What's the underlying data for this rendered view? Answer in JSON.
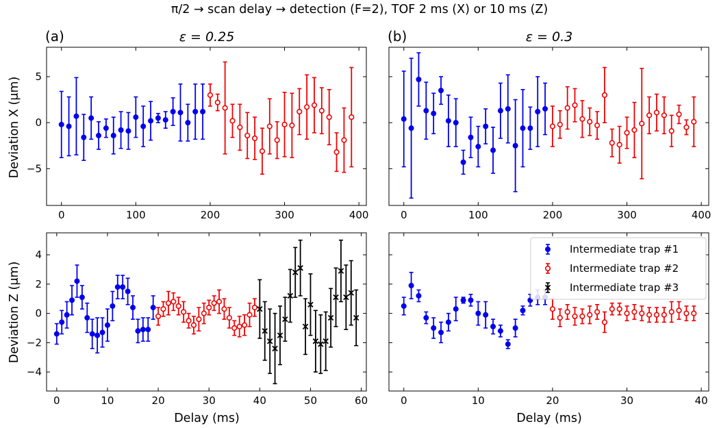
{
  "figure": {
    "suptitle": "π/2 → scan delay →  detection (F=2), TOF 2 ms (X) or 10 ms (Z)"
  },
  "chart_data": [
    {
      "id": "a-top",
      "type": "scatter",
      "panel_label": "(a)",
      "title": "ε = 0.25",
      "xlabel": "",
      "ylabel": "Deviation X (μm)",
      "xlim": [
        -20,
        410
      ],
      "ylim": [
        -9,
        8.2
      ],
      "xticks": [
        0,
        100,
        200,
        300,
        400
      ],
      "yticks": [
        -5,
        0,
        5
      ],
      "series": [
        {
          "name": "Intermediate trap #1",
          "color": "#0000ee",
          "marker": "filled-circle",
          "x": [
            0,
            10,
            20,
            30,
            40,
            50,
            60,
            70,
            80,
            90,
            100,
            110,
            120,
            130,
            140,
            150,
            160,
            170,
            180,
            190
          ],
          "y": [
            -0.2,
            -0.4,
            0.7,
            -1.6,
            0.5,
            -1.4,
            -0.6,
            -1.4,
            -0.8,
            -0.9,
            0.6,
            -0.4,
            0.2,
            0.5,
            0.3,
            1.2,
            1.1,
            0.0,
            1.2,
            1.2
          ],
          "err": [
            3.6,
            3.2,
            4.2,
            2.5,
            2.3,
            1.5,
            1.0,
            2.0,
            2.0,
            2.0,
            2.2,
            2.2,
            2.1,
            0.5,
            0.9,
            1.5,
            3.1,
            2.0,
            3.0,
            3.0
          ]
        },
        {
          "name": "Intermediate trap #2",
          "color": "#ee0000",
          "marker": "open-circle",
          "x": [
            200,
            210,
            220,
            230,
            240,
            250,
            260,
            270,
            280,
            290,
            300,
            310,
            320,
            330,
            340,
            350,
            360,
            370,
            380,
            390
          ],
          "y": [
            3.0,
            2.2,
            1.6,
            0.2,
            -0.5,
            -1.4,
            -1.7,
            -3.1,
            -0.4,
            -1.9,
            -0.2,
            -0.3,
            1.2,
            1.7,
            1.9,
            1.3,
            0.6,
            -3.2,
            -1.9,
            0.6
          ],
          "err": [
            1.2,
            0.9,
            5.0,
            1.8,
            2.5,
            2.5,
            2.3,
            2.5,
            3.0,
            2.0,
            3.5,
            3.5,
            2.5,
            3.5,
            3.0,
            2.5,
            3.0,
            2.1,
            3.5,
            5.4
          ]
        }
      ]
    },
    {
      "id": "b-top",
      "type": "scatter",
      "panel_label": "(b)",
      "title": "ε = 0.3",
      "xlabel": "",
      "ylabel": "",
      "xlim": [
        -20,
        410
      ],
      "ylim": [
        -9,
        8.2
      ],
      "xticks": [
        0,
        100,
        200,
        300,
        400
      ],
      "yticks": [
        -5,
        0,
        5
      ],
      "series": [
        {
          "name": "Intermediate trap #1",
          "color": "#0000ee",
          "marker": "filled-circle",
          "x": [
            0,
            10,
            20,
            30,
            40,
            50,
            60,
            70,
            80,
            90,
            100,
            110,
            120,
            130,
            140,
            150,
            160,
            170,
            180,
            190
          ],
          "y": [
            0.4,
            -0.6,
            4.7,
            1.3,
            1.0,
            3.5,
            0.2,
            0.0,
            -4.3,
            -1.6,
            -2.6,
            -0.4,
            -3.0,
            1.3,
            1.5,
            -2.5,
            -0.6,
            -0.6,
            1.2,
            1.5
          ],
          "err": [
            5.2,
            7.6,
            2.9,
            3.1,
            2.2,
            1.5,
            2.8,
            2.6,
            1.3,
            2.2,
            2.2,
            1.9,
            2.5,
            3.0,
            3.7,
            5.0,
            4.2,
            2.3,
            3.8,
            2.8
          ]
        },
        {
          "name": "Intermediate trap #2",
          "color": "#ee0000",
          "marker": "open-circle",
          "x": [
            200,
            210,
            220,
            230,
            240,
            250,
            260,
            270,
            280,
            290,
            300,
            310,
            320,
            330,
            340,
            350,
            360,
            370,
            380,
            390
          ],
          "y": [
            -0.4,
            -0.2,
            1.6,
            1.9,
            0.4,
            0.1,
            -0.3,
            3.0,
            -2.2,
            -2.4,
            -1.1,
            -0.8,
            -0.1,
            0.8,
            1.1,
            0.8,
            -0.9,
            0.9,
            -0.5,
            0.1
          ],
          "err": [
            2.2,
            1.5,
            2.3,
            1.8,
            2.0,
            1.5,
            1.5,
            3.0,
            1.5,
            2.0,
            1.7,
            3.0,
            6.0,
            2.0,
            2.0,
            2.0,
            1.7,
            1.0,
            0.8,
            2.7
          ]
        }
      ]
    },
    {
      "id": "a-bottom",
      "type": "scatter",
      "panel_label": "",
      "title": "",
      "xlabel": "Delay (ms)",
      "ylabel": "Deviation Z (μm)",
      "xlim": [
        -2,
        61
      ],
      "ylim": [
        -5.3,
        5.5
      ],
      "xticks": [
        0,
        10,
        20,
        30,
        40,
        50,
        60
      ],
      "yticks": [
        -4,
        -2,
        0,
        2,
        4
      ],
      "series": [
        {
          "name": "Intermediate trap #1",
          "color": "#0000ee",
          "marker": "filled-circle",
          "x": [
            0,
            1,
            2,
            3,
            4,
            5,
            6,
            7,
            8,
            9,
            10,
            11,
            12,
            13,
            14,
            15,
            16,
            17,
            18,
            19
          ],
          "y": [
            -1.4,
            -0.6,
            -0.1,
            0.9,
            2.2,
            1.1,
            -0.3,
            -1.4,
            -1.5,
            -1.3,
            -0.8,
            0.5,
            1.8,
            1.8,
            1.5,
            0.4,
            -1.2,
            -1.1,
            -1.1,
            0.4
          ],
          "err": [
            0.7,
            0.8,
            0.9,
            1.0,
            1.1,
            0.8,
            1.0,
            1.0,
            1.2,
            1.0,
            1.1,
            1.0,
            0.8,
            0.8,
            0.9,
            0.8,
            0.8,
            0.8,
            0.8,
            0.8
          ]
        },
        {
          "name": "Intermediate trap #2",
          "color": "#ee0000",
          "marker": "open-circle",
          "x": [
            20,
            21,
            22,
            23,
            24,
            25,
            26,
            27,
            28,
            29,
            30,
            31,
            32,
            33,
            34,
            35,
            36,
            37,
            38,
            39
          ],
          "y": [
            -0.2,
            0.3,
            0.7,
            0.8,
            0.5,
            0.1,
            -0.5,
            -0.8,
            -0.4,
            0.0,
            0.4,
            0.7,
            0.8,
            0.3,
            -0.3,
            -1.0,
            -0.9,
            -0.8,
            -0.1,
            0.4
          ],
          "err": [
            0.6,
            0.5,
            0.8,
            0.6,
            0.6,
            0.7,
            0.5,
            0.6,
            0.8,
            0.7,
            0.5,
            0.5,
            0.8,
            0.7,
            0.7,
            0.5,
            0.7,
            0.7,
            0.8,
            0.6
          ]
        },
        {
          "name": "Intermediate trap #3",
          "color": "#000000",
          "marker": "x",
          "x": [
            40,
            41,
            42,
            43,
            44,
            45,
            46,
            47,
            48,
            49,
            50,
            51,
            52,
            53,
            54,
            55,
            56,
            57,
            58,
            59
          ],
          "y": [
            0.3,
            -1.2,
            -1.9,
            -2.4,
            -1.5,
            -0.4,
            1.2,
            2.8,
            3.1,
            -0.9,
            0.6,
            -1.9,
            -2.1,
            -1.9,
            -0.3,
            1.1,
            2.9,
            1.1,
            1.4,
            -0.3
          ],
          "err": [
            2.0,
            2.0,
            2.2,
            2.4,
            2.0,
            1.5,
            1.8,
            1.7,
            1.9,
            1.9,
            2.1,
            2.1,
            2.0,
            2.0,
            2.0,
            2.0,
            2.1,
            2.2,
            2.2,
            1.9
          ]
        }
      ]
    },
    {
      "id": "b-bottom",
      "type": "scatter",
      "panel_label": "",
      "title": "",
      "xlabel": "Delay (ms)",
      "ylabel": "",
      "xlim": [
        -2,
        41
      ],
      "ylim": [
        -5.3,
        5.5
      ],
      "xticks": [
        0,
        10,
        20,
        30,
        40
      ],
      "yticks": [
        -4,
        -2,
        0,
        2,
        4
      ],
      "legend": {
        "placement": "upper-right",
        "entries": [
          {
            "label": "Intermediate trap #1",
            "color": "#0000ee",
            "marker": "filled-circle"
          },
          {
            "label": "Intermediate trap #2",
            "color": "#ee0000",
            "marker": "open-circle"
          },
          {
            "label": "Intermediate trap #3",
            "color": "#000000",
            "marker": "x"
          }
        ]
      },
      "series": [
        {
          "name": "Intermediate trap #1",
          "color": "#0000ee",
          "marker": "filled-circle",
          "x": [
            0,
            1,
            2,
            3,
            4,
            5,
            6,
            7,
            8,
            9,
            10,
            11,
            12,
            13,
            14,
            15,
            16,
            17,
            18,
            19
          ],
          "y": [
            0.5,
            1.9,
            1.2,
            -0.3,
            -1.0,
            -1.3,
            -0.6,
            0.3,
            0.9,
            0.9,
            0.0,
            -0.1,
            -0.9,
            -1.2,
            -2.1,
            -1.0,
            0.2,
            0.9,
            1.1,
            1.1
          ],
          "err": [
            0.6,
            0.9,
            0.4,
            0.4,
            0.7,
            0.7,
            0.6,
            0.8,
            0.2,
            0.4,
            0.8,
            0.9,
            0.5,
            0.4,
            0.3,
            0.6,
            0.3,
            0.4,
            0.5,
            0.5
          ]
        },
        {
          "name": "Intermediate trap #2",
          "color": "#ee0000",
          "marker": "open-circle",
          "x": [
            20,
            21,
            22,
            23,
            24,
            25,
            26,
            27,
            28,
            29,
            30,
            31,
            32,
            33,
            34,
            35,
            36,
            37,
            38,
            39
          ],
          "y": [
            0.3,
            -0.3,
            0.1,
            -0.2,
            -0.2,
            -0.1,
            0.1,
            -0.6,
            0.3,
            0.3,
            0.0,
            0.1,
            0.0,
            -0.1,
            -0.1,
            -0.1,
            0.1,
            0.2,
            0.0,
            0.0
          ],
          "err": [
            0.7,
            0.6,
            0.5,
            0.6,
            0.5,
            0.6,
            0.5,
            0.7,
            0.4,
            0.4,
            0.5,
            0.5,
            0.5,
            0.5,
            0.5,
            0.5,
            0.7,
            0.6,
            0.5,
            0.5
          ]
        }
      ]
    }
  ]
}
